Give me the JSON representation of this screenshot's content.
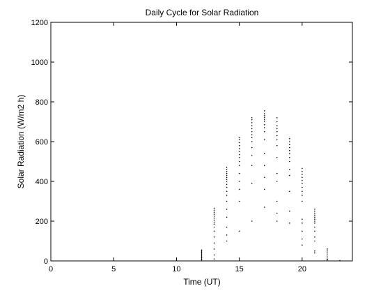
{
  "chart_data": {
    "type": "scatter",
    "title": "Daily Cycle for Solar Radiation",
    "xlabel": "Time (UT)",
    "ylabel": "Solar Radiation (W/m2 h)",
    "xlim": [
      0,
      24
    ],
    "ylim": [
      0,
      1200
    ],
    "xticks": [
      0,
      5,
      10,
      15,
      20
    ],
    "yticks": [
      0,
      200,
      400,
      600,
      800,
      1000,
      1200
    ],
    "grid": false,
    "legend": "none",
    "marker_color": "#000000",
    "series": [
      {
        "points": [
          [
            12,
            5
          ],
          [
            12,
            10
          ],
          [
            12,
            15
          ],
          [
            12,
            20
          ],
          [
            12,
            25
          ],
          [
            12,
            30
          ],
          [
            12,
            35
          ],
          [
            12,
            40
          ],
          [
            12,
            45
          ],
          [
            12,
            50
          ],
          [
            12,
            55
          ],
          [
            13,
            10
          ],
          [
            13,
            30
          ],
          [
            13,
            60
          ],
          [
            13,
            90
          ],
          [
            13,
            120
          ],
          [
            13,
            150
          ],
          [
            13,
            170
          ],
          [
            13,
            185
          ],
          [
            13,
            195
          ],
          [
            13,
            205
          ],
          [
            13,
            215
          ],
          [
            13,
            225
          ],
          [
            13,
            235
          ],
          [
            13,
            245
          ],
          [
            13,
            255
          ],
          [
            13,
            265
          ],
          [
            14,
            100
          ],
          [
            14,
            130
          ],
          [
            14,
            170
          ],
          [
            14,
            220
          ],
          [
            14,
            260
          ],
          [
            14,
            300
          ],
          [
            14,
            330
          ],
          [
            14,
            350
          ],
          [
            14,
            370
          ],
          [
            14,
            385
          ],
          [
            14,
            400
          ],
          [
            14,
            410
          ],
          [
            14,
            420
          ],
          [
            14,
            430
          ],
          [
            14,
            440
          ],
          [
            14,
            450
          ],
          [
            14,
            460
          ],
          [
            14,
            470
          ],
          [
            15,
            150
          ],
          [
            15,
            300
          ],
          [
            15,
            360
          ],
          [
            15,
            400
          ],
          [
            15,
            440
          ],
          [
            15,
            480
          ],
          [
            15,
            500
          ],
          [
            15,
            520
          ],
          [
            15,
            535
          ],
          [
            15,
            550
          ],
          [
            15,
            565
          ],
          [
            15,
            580
          ],
          [
            15,
            595
          ],
          [
            15,
            610
          ],
          [
            15,
            620
          ],
          [
            16,
            200
          ],
          [
            16,
            390
          ],
          [
            16,
            480
          ],
          [
            16,
            530
          ],
          [
            16,
            570
          ],
          [
            16,
            600
          ],
          [
            16,
            620
          ],
          [
            16,
            635
          ],
          [
            16,
            650
          ],
          [
            16,
            665
          ],
          [
            16,
            680
          ],
          [
            16,
            695
          ],
          [
            16,
            710
          ],
          [
            16,
            720
          ],
          [
            17,
            270
          ],
          [
            17,
            360
          ],
          [
            17,
            420
          ],
          [
            17,
            480
          ],
          [
            17,
            540
          ],
          [
            17,
            610
          ],
          [
            17,
            650
          ],
          [
            17,
            670
          ],
          [
            17,
            685
          ],
          [
            17,
            700
          ],
          [
            17,
            710
          ],
          [
            17,
            720
          ],
          [
            17,
            730
          ],
          [
            17,
            740
          ],
          [
            17,
            755
          ],
          [
            18,
            200
          ],
          [
            18,
            240
          ],
          [
            18,
            300
          ],
          [
            18,
            400
          ],
          [
            18,
            440
          ],
          [
            18,
            520
          ],
          [
            18,
            580
          ],
          [
            18,
            610
          ],
          [
            18,
            630
          ],
          [
            18,
            650
          ],
          [
            18,
            665
          ],
          [
            18,
            680
          ],
          [
            18,
            700
          ],
          [
            18,
            720
          ],
          [
            19,
            190
          ],
          [
            19,
            250
          ],
          [
            19,
            350
          ],
          [
            19,
            430
          ],
          [
            19,
            460
          ],
          [
            19,
            500
          ],
          [
            19,
            520
          ],
          [
            19,
            540
          ],
          [
            19,
            555
          ],
          [
            19,
            570
          ],
          [
            19,
            585
          ],
          [
            19,
            600
          ],
          [
            19,
            615
          ],
          [
            20,
            80
          ],
          [
            20,
            110
          ],
          [
            20,
            150
          ],
          [
            20,
            190
          ],
          [
            20,
            210
          ],
          [
            20,
            300
          ],
          [
            20,
            330
          ],
          [
            20,
            350
          ],
          [
            20,
            370
          ],
          [
            20,
            390
          ],
          [
            20,
            405
          ],
          [
            20,
            420
          ],
          [
            20,
            435
          ],
          [
            20,
            450
          ],
          [
            20,
            465
          ],
          [
            21,
            40
          ],
          [
            21,
            50
          ],
          [
            21,
            100
          ],
          [
            21,
            120
          ],
          [
            21,
            150
          ],
          [
            21,
            170
          ],
          [
            21,
            190
          ],
          [
            21,
            200
          ],
          [
            21,
            210
          ],
          [
            21,
            220
          ],
          [
            21,
            230
          ],
          [
            21,
            240
          ],
          [
            21,
            250
          ],
          [
            21,
            260
          ],
          [
            22,
            5
          ],
          [
            22,
            10
          ],
          [
            22,
            20
          ],
          [
            22,
            30
          ],
          [
            22,
            40
          ],
          [
            22,
            50
          ],
          [
            22,
            60
          ],
          [
            23,
            2
          ]
        ]
      }
    ]
  }
}
